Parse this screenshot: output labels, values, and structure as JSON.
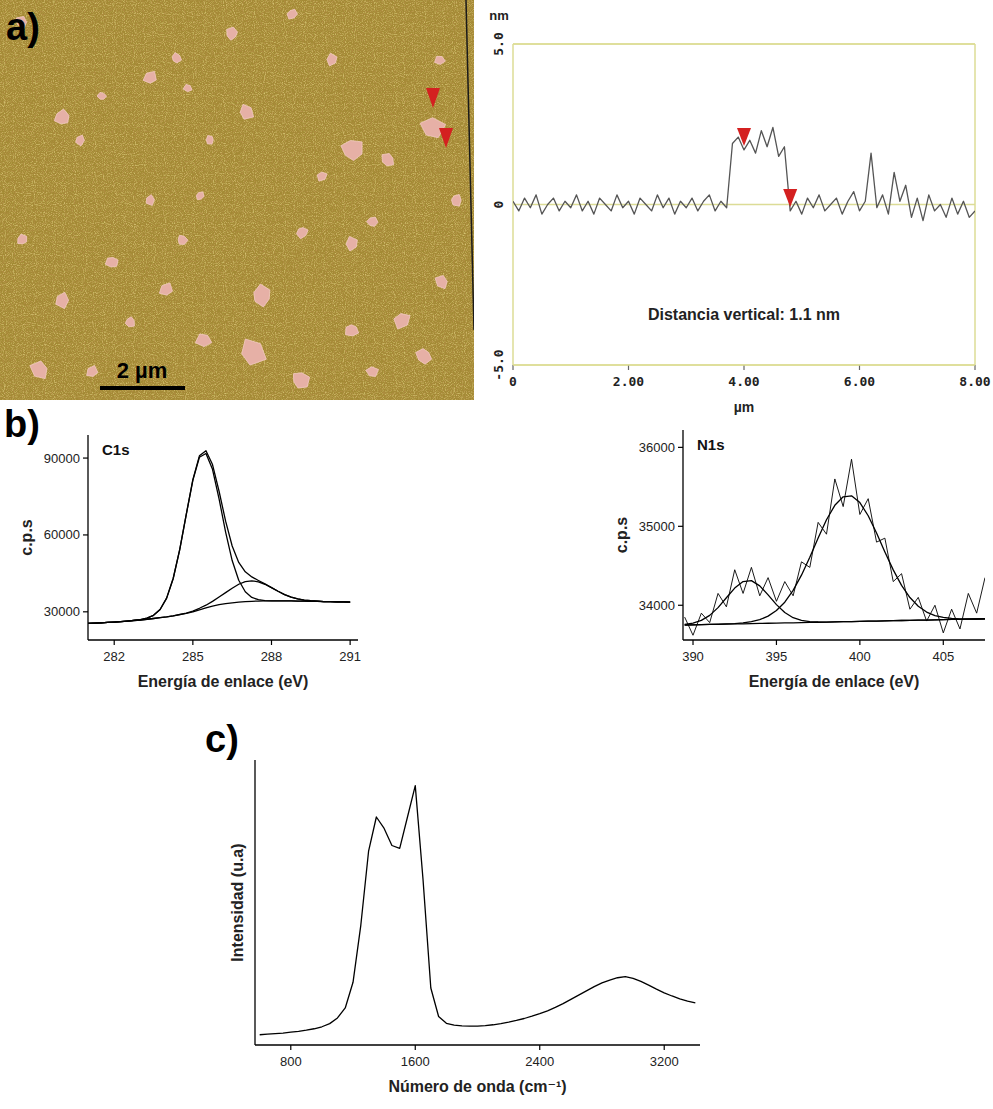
{
  "panel_labels": [
    "a)",
    "b)",
    "c)"
  ],
  "afm_image": {
    "scale_bar_label": "2 µm"
  },
  "chart_data": [
    {
      "type": "line",
      "x_label": "µm",
      "y_label": "nm",
      "annotation": "Distancia vertical: 1.1 nm",
      "x": [
        0,
        0.1,
        0.2,
        0.3,
        0.4,
        0.5,
        0.6,
        0.7,
        0.8,
        0.9,
        1.0,
        1.1,
        1.2,
        1.3,
        1.4,
        1.5,
        1.6,
        1.7,
        1.8,
        1.9,
        2.0,
        2.1,
        2.2,
        2.3,
        2.4,
        2.5,
        2.6,
        2.7,
        2.8,
        2.9,
        3.0,
        3.1,
        3.2,
        3.3,
        3.4,
        3.5,
        3.6,
        3.7,
        3.8,
        3.9,
        4.0,
        4.1,
        4.2,
        4.3,
        4.4,
        4.5,
        4.6,
        4.7,
        4.8,
        4.9,
        5.0,
        5.1,
        5.2,
        5.3,
        5.4,
        5.5,
        5.6,
        5.7,
        5.8,
        5.9,
        6.0,
        6.1,
        6.2,
        6.3,
        6.4,
        6.5,
        6.6,
        6.7,
        6.8,
        6.9,
        7.0,
        7.1,
        7.2,
        7.3,
        7.4,
        7.5,
        7.6,
        7.7,
        7.8,
        7.9,
        8.0
      ],
      "series": [
        {
          "color": "#555555",
          "values": [
            0.1,
            -0.2,
            0.2,
            -0.1,
            0.3,
            -0.3,
            0.0,
            0.2,
            -0.2,
            0.1,
            -0.1,
            0.3,
            -0.2,
            0.1,
            -0.3,
            0.2,
            0.0,
            -0.2,
            0.3,
            -0.1,
            0.1,
            -0.3,
            0.2,
            0.0,
            -0.2,
            0.3,
            -0.1,
            0.2,
            -0.3,
            0.1,
            -0.1,
            0.2,
            -0.2,
            0.1,
            0.3,
            -0.2,
            0.1,
            -0.1,
            1.9,
            2.1,
            1.7,
            2.0,
            1.6,
            2.3,
            1.8,
            2.4,
            1.5,
            1.8,
            -0.2,
            0.1,
            -0.3,
            0.2,
            -0.1,
            0.3,
            -0.2,
            0.0,
            0.2,
            -0.3,
            0.1,
            0.4,
            -0.2,
            0.1,
            1.6,
            -0.1,
            0.3,
            -0.3,
            1.0,
            0.1,
            0.6,
            -0.4,
            0.2,
            -0.5,
            0.3,
            -0.2,
            0.0,
            -0.4,
            0.2,
            -0.3,
            0.1,
            -0.4,
            -0.2
          ]
        }
      ],
      "xlim": [
        0,
        8
      ],
      "ylim": [
        -5,
        5
      ],
      "xticks": [
        0,
        {
          "value": 2,
          "label": "2.00"
        },
        {
          "value": 4,
          "label": "4.00"
        },
        {
          "value": 6,
          "label": "6.00"
        },
        {
          "value": 8,
          "label": "8.00"
        }
      ],
      "yticks": [
        {
          "value": -5,
          "label": "-5.0"
        },
        0,
        {
          "value": 5,
          "label": "5.0"
        }
      ],
      "grid": true,
      "cursors": [
        4.0,
        4.8
      ]
    },
    {
      "type": "line",
      "title": "C1s",
      "x_label": "Energía de enlace (eV)",
      "y_label": "c.p.s",
      "x": [
        281,
        281.25,
        281.5,
        281.75,
        282,
        282.25,
        282.5,
        282.75,
        283,
        283.25,
        283.5,
        283.75,
        284,
        284.25,
        284.5,
        284.75,
        285,
        285.25,
        285.5,
        285.75,
        286,
        286.25,
        286.5,
        286.75,
        287,
        287.25,
        287.5,
        287.75,
        288,
        288.25,
        288.5,
        288.75,
        289,
        289.25,
        289.5,
        289.75,
        290,
        290.25,
        290.5,
        290.75,
        291
      ],
      "series": [
        {
          "color": "#000000",
          "values": [
            25500,
            25600,
            25700,
            25850,
            26000,
            26200,
            26400,
            26650,
            26920,
            27510,
            28630,
            30920,
            35330,
            43000,
            54350,
            68130,
            81580,
            90880,
            92880,
            87470,
            77050,
            65380,
            55700,
            49250,
            45610,
            43610,
            42240,
            40890,
            39440,
            38030,
            36730,
            35770,
            35050,
            34590,
            34310,
            34140,
            34000,
            33950,
            33900,
            33850,
            33800
          ]
        },
        {
          "color": "#000000",
          "values": [
            25500,
            25600,
            25700,
            25850,
            26000,
            26200,
            26400,
            26650,
            26920,
            27510,
            28630,
            30920,
            35330,
            43000,
            54300,
            68000,
            81300,
            90300,
            91800,
            85600,
            74100,
            61100,
            50000,
            42300,
            37830,
            35610,
            34720,
            34400,
            34300,
            34300,
            34250,
            34250,
            34200,
            34150,
            34100,
            34050,
            34000,
            33950,
            33900,
            33850,
            33800
          ]
        },
        {
          "color": "#000000",
          "values": [
            25500,
            25600,
            25700,
            25850,
            26000,
            26200,
            26400,
            26600,
            26800,
            27100,
            27400,
            27700,
            28000,
            28400,
            28950,
            29530,
            30280,
            31380,
            32580,
            34070,
            35750,
            37480,
            39200,
            40750,
            41780,
            42100,
            41720,
            40740,
            39440,
            38030,
            36730,
            35770,
            35050,
            34590,
            34310,
            34140,
            34000,
            33950,
            33900,
            33850,
            33800
          ]
        },
        {
          "color": "#000000",
          "values": [
            25500,
            25600,
            25700,
            25850,
            26000,
            26200,
            26400,
            26600,
            26800,
            27100,
            27400,
            27700,
            28000,
            28400,
            28900,
            29400,
            30000,
            30800,
            31500,
            32200,
            32800,
            33200,
            33500,
            33800,
            34000,
            34100,
            34200,
            34250,
            34300,
            34300,
            34250,
            34250,
            34200,
            34150,
            34100,
            34050,
            34000,
            33950,
            33900,
            33850,
            33800
          ]
        }
      ],
      "xlim": [
        281,
        291.3
      ],
      "ylim": [
        19000,
        99000
      ],
      "xticks": [
        282,
        285,
        288,
        291
      ],
      "yticks": [
        30000,
        60000,
        90000
      ]
    },
    {
      "type": "line",
      "title": "N1s",
      "x_label": "Energía de enlace (eV)",
      "y_label": "c.p.s",
      "x": [
        389.5,
        390,
        390.5,
        391,
        391.5,
        392,
        392.5,
        393,
        393.5,
        394,
        394.5,
        395,
        395.5,
        396,
        396.5,
        397,
        397.5,
        398,
        398.5,
        399,
        399.5,
        400,
        400.5,
        401,
        401.5,
        402,
        402.5,
        403,
        403.5,
        404,
        404.5,
        405,
        405.5,
        406,
        406.5,
        407,
        407.5
      ],
      "series": [
        {
          "color": "#000000",
          "values": [
            33850,
            33620,
            33900,
            33780,
            34150,
            33980,
            34450,
            34150,
            34480,
            34120,
            34350,
            34050,
            34300,
            34120,
            34550,
            34480,
            35050,
            34900,
            35600,
            35250,
            35850,
            35150,
            35350,
            34800,
            34850,
            34300,
            34400,
            33950,
            34100,
            33800,
            34000,
            33650,
            33950,
            33700,
            34150,
            33900,
            34350
          ]
        },
        {
          "color": "#000000",
          "values": [
            33758,
            33774,
            33808,
            33872,
            33970,
            34095,
            34218,
            34300,
            34312,
            34246,
            34131,
            34008,
            33908,
            33842,
            33808,
            33793,
            33788,
            33787,
            33789,
            33792,
            33794,
            33796,
            33798,
            33800,
            33802,
            33805,
            33807,
            33809,
            33811,
            33813,
            33816,
            33818,
            33820,
            33822,
            33824,
            33826,
            33829
          ]
        },
        {
          "color": "#000000",
          "values": [
            33750,
            33752,
            33754,
            33757,
            33760,
            33763,
            33768,
            33776,
            33792,
            33818,
            33862,
            33933,
            34039,
            34188,
            34381,
            34609,
            34852,
            35083,
            35266,
            35374,
            35386,
            35301,
            35134,
            34915,
            34676,
            34448,
            34252,
            34098,
            33988,
            33914,
            33870,
            33846,
            33833,
            33828,
            33826,
            33826,
            33829
          ]
        },
        {
          "color": "#000000",
          "values": [
            33750,
            33752,
            33754,
            33757,
            33759,
            33761,
            33763,
            33765,
            33768,
            33770,
            33772,
            33774,
            33776,
            33778,
            33781,
            33783,
            33785,
            33787,
            33789,
            33792,
            33794,
            33796,
            33798,
            33800,
            33802,
            33805,
            33807,
            33809,
            33811,
            33813,
            33816,
            33818,
            33820,
            33822,
            33824,
            33826,
            33829
          ]
        }
      ],
      "xlim": [
        389.4,
        407.5
      ],
      "ylim": [
        33560,
        36220
      ],
      "xticks": [
        390,
        395,
        400,
        405
      ],
      "yticks": [
        34000,
        35000,
        36000
      ]
    },
    {
      "type": "line",
      "x_label": "Número de onda (cm⁻¹)",
      "y_label": "Intensidad (u.a)",
      "x": [
        600,
        650,
        700,
        750,
        800,
        850,
        900,
        950,
        1000,
        1050,
        1100,
        1150,
        1200,
        1250,
        1300,
        1350,
        1400,
        1450,
        1500,
        1550,
        1600,
        1650,
        1700,
        1750,
        1800,
        1850,
        1900,
        1950,
        2000,
        2050,
        2100,
        2150,
        2200,
        2250,
        2300,
        2350,
        2400,
        2450,
        2500,
        2550,
        2600,
        2650,
        2700,
        2750,
        2800,
        2850,
        2900,
        2950,
        3000,
        3050,
        3100,
        3150,
        3200,
        3250,
        3300,
        3350,
        3400
      ],
      "series": [
        {
          "color": "#000000",
          "values": [
            3.6,
            3.8,
            4.0,
            4.2,
            4.5,
            4.8,
            5.2,
            5.7,
            6.4,
            7.5,
            9.5,
            13,
            22,
            42,
            68,
            80,
            76,
            70,
            69,
            80,
            91,
            58,
            20,
            10,
            7.6,
            7.0,
            6.7,
            6.6,
            6.6,
            6.8,
            7.1,
            7.5,
            8.0,
            8.6,
            9.3,
            10.1,
            11.0,
            12.0,
            13.2,
            14.5,
            16.0,
            17.5,
            19.0,
            20.5,
            21.8,
            22.8,
            23.6,
            24.0,
            23.4,
            22.3,
            21.0,
            19.6,
            18.3,
            17.2,
            16.2,
            15.4,
            14.8
          ]
        }
      ],
      "xlim": [
        570,
        3430
      ],
      "ylim": [
        0,
        100
      ],
      "xticks": [
        800,
        1600,
        2400,
        3200
      ],
      "tick_labels": "x"
    }
  ]
}
